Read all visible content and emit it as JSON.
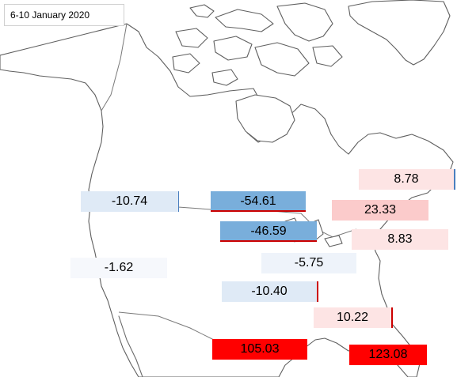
{
  "title": "6-10 January 2020",
  "colors": {
    "strong_negative": "#79aedb",
    "mild_negative": "#dfeaf6",
    "near_zero": "#f6f8fc",
    "mild_positive": "#fde4e4",
    "medium_positive": "#fbcbcb",
    "strong_positive": "#ff0000"
  },
  "regions": [
    {
      "id": "pacific-northwest",
      "value": "-10.74"
    },
    {
      "id": "upper-midwest",
      "value": "-54.61"
    },
    {
      "id": "great-lakes",
      "value": "-46.59"
    },
    {
      "id": "northeast",
      "value": "8.78"
    },
    {
      "id": "mid-atlantic",
      "value": "23.33"
    },
    {
      "id": "east-coast",
      "value": "8.83"
    },
    {
      "id": "west",
      "value": "-1.62"
    },
    {
      "id": "ohio-valley",
      "value": "-5.75"
    },
    {
      "id": "south-central",
      "value": "-10.40"
    },
    {
      "id": "southeast",
      "value": "10.22"
    },
    {
      "id": "texas",
      "value": "105.03"
    },
    {
      "id": "florida",
      "value": "123.08"
    }
  ]
}
